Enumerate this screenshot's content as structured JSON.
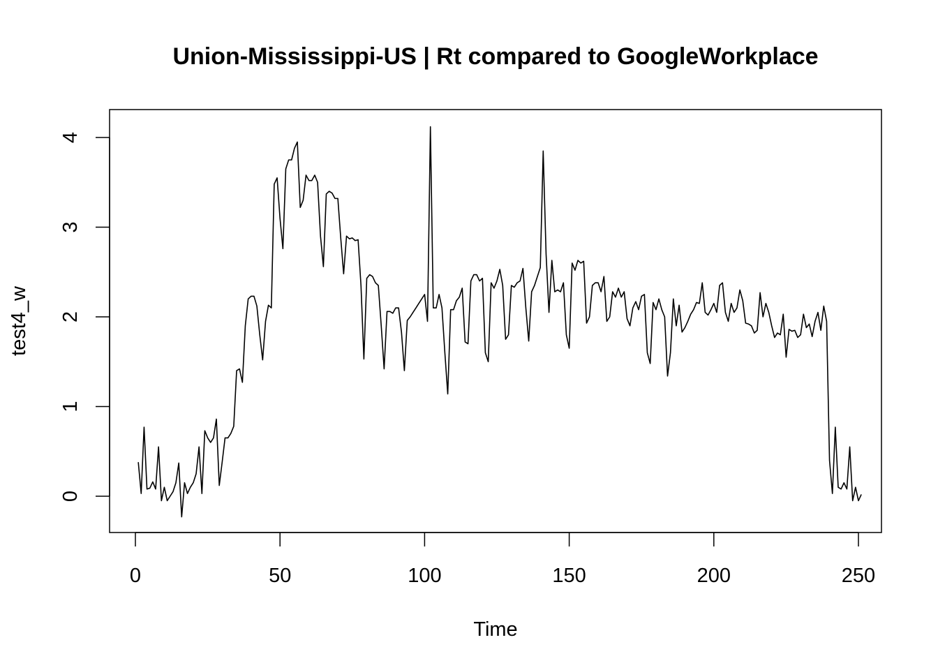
{
  "chart_data": {
    "type": "line",
    "title": "Union-Mississippi-US | Rt compared to GoogleWorkplace",
    "xlabel": "Time",
    "ylabel": "test4_w",
    "xlim": [
      0,
      250
    ],
    "ylim": [
      -0.3,
      4.2
    ],
    "xticks": [
      0,
      50,
      100,
      150,
      200,
      250
    ],
    "xtick_labels": [
      "0",
      "50",
      "100",
      "150",
      "200",
      "250"
    ],
    "yticks": [
      0,
      1,
      2,
      3,
      4
    ],
    "ytick_labels": [
      "0",
      "1",
      "2",
      "3",
      "4"
    ],
    "grid": false,
    "legend": "none",
    "line_color": "#000000",
    "series": [
      {
        "x_start": 1,
        "x_step": 1,
        "values": [
          0.38,
          0.03,
          0.77,
          0.08,
          0.09,
          0.16,
          0.08,
          0.55,
          -0.05,
          0.1,
          -0.05,
          0.0,
          0.05,
          0.15,
          0.37,
          -0.23,
          0.15,
          0.03,
          0.1,
          0.15,
          0.25,
          0.55,
          0.03,
          0.73,
          0.65,
          0.6,
          0.65,
          0.86,
          0.12,
          0.38,
          0.65,
          0.65,
          0.7,
          0.78,
          1.4,
          1.42,
          1.27,
          1.9,
          2.2,
          2.23,
          2.23,
          2.12,
          1.8,
          1.52,
          1.95,
          2.13,
          2.1,
          3.48,
          3.55,
          3.1,
          2.76,
          3.65,
          3.75,
          3.75,
          3.88,
          3.95,
          3.22,
          3.3,
          3.58,
          3.52,
          3.52,
          3.58,
          3.5,
          2.9,
          2.56,
          3.37,
          3.4,
          3.38,
          3.32,
          3.32,
          2.88,
          2.48,
          2.9,
          2.87,
          2.88,
          2.85,
          2.86,
          2.35,
          1.53,
          2.43,
          2.47,
          2.45,
          2.38,
          2.35,
          1.9,
          1.42,
          2.06,
          2.06,
          2.04,
          2.1,
          2.1,
          1.83,
          1.4,
          1.96,
          2.0,
          2.05,
          2.1,
          2.15,
          2.2,
          2.25,
          1.95,
          4.12,
          2.1,
          2.1,
          2.25,
          2.1,
          1.6,
          1.14,
          2.08,
          2.08,
          2.18,
          2.22,
          2.32,
          1.72,
          1.7,
          2.4,
          2.47,
          2.47,
          2.4,
          2.43,
          1.6,
          1.5,
          2.38,
          2.32,
          2.4,
          2.53,
          2.35,
          1.75,
          1.8,
          2.35,
          2.33,
          2.38,
          2.4,
          2.54,
          2.1,
          1.73,
          2.28,
          2.35,
          2.45,
          2.55,
          3.85,
          2.7,
          2.05,
          2.63,
          2.28,
          2.3,
          2.28,
          2.38,
          1.8,
          1.65,
          2.6,
          2.52,
          2.63,
          2.6,
          2.62,
          1.93,
          2.0,
          2.35,
          2.38,
          2.38,
          2.28,
          2.45,
          1.95,
          2.0,
          2.28,
          2.22,
          2.32,
          2.22,
          2.28,
          1.98,
          1.9,
          2.1,
          2.17,
          2.08,
          2.23,
          2.25,
          1.6,
          1.48,
          2.16,
          2.08,
          2.2,
          2.08,
          2.0,
          1.34,
          1.6,
          2.2,
          1.9,
          2.13,
          1.83,
          1.88,
          1.95,
          2.03,
          2.08,
          2.16,
          2.15,
          2.38,
          2.05,
          2.02,
          2.08,
          2.15,
          2.05,
          2.35,
          2.38,
          2.05,
          1.95,
          2.15,
          2.05,
          2.1,
          2.3,
          2.18,
          1.93,
          1.92,
          1.9,
          1.82,
          1.85,
          2.27,
          2.0,
          2.15,
          2.05,
          1.9,
          1.77,
          1.82,
          1.8,
          2.03,
          1.55,
          1.86,
          1.84,
          1.85,
          1.77,
          1.8,
          2.03,
          1.88,
          1.92,
          1.78,
          1.95,
          2.05,
          1.85,
          2.12,
          1.95,
          0.4,
          0.03,
          0.77,
          0.1,
          0.08,
          0.15,
          0.08,
          0.55,
          -0.05,
          0.1,
          -0.05,
          0.02
        ]
      }
    ]
  }
}
